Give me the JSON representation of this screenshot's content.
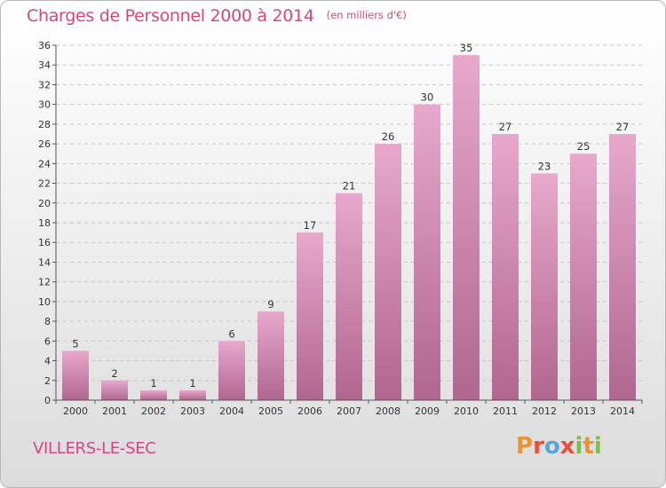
{
  "header": {
    "title": "Charges de Personnel 2000 à 2014",
    "subtitle": "(en milliers d'€)"
  },
  "footer": {
    "commune": "VILLERS-LE-SEC",
    "logo": [
      "P",
      "r",
      "o",
      "x",
      "i",
      "t",
      "i"
    ]
  },
  "colors": {
    "title": "#d6477f",
    "bar_top": "#e8a8cc",
    "bar_bottom": "#b0668f",
    "axis": "#555555",
    "grid": "#c8c8c8"
  },
  "chart_data": {
    "type": "bar",
    "title": "Charges de Personnel 2000 à 2014",
    "subtitle": "(en milliers d'€)",
    "xlabel": "",
    "ylabel": "",
    "categories": [
      "2000",
      "2001",
      "2002",
      "2003",
      "2004",
      "2005",
      "2006",
      "2007",
      "2008",
      "2009",
      "2010",
      "2011",
      "2012",
      "2013",
      "2014"
    ],
    "values": [
      5,
      2,
      1,
      1,
      6,
      9,
      17,
      21,
      26,
      30,
      35,
      27,
      23,
      25,
      27
    ],
    "ylim": [
      0,
      36
    ],
    "yticks": [
      0,
      2,
      4,
      6,
      8,
      10,
      12,
      14,
      16,
      18,
      20,
      22,
      24,
      26,
      28,
      30,
      32,
      34,
      36
    ],
    "grid": "horizontal dashed",
    "legend": "none"
  }
}
